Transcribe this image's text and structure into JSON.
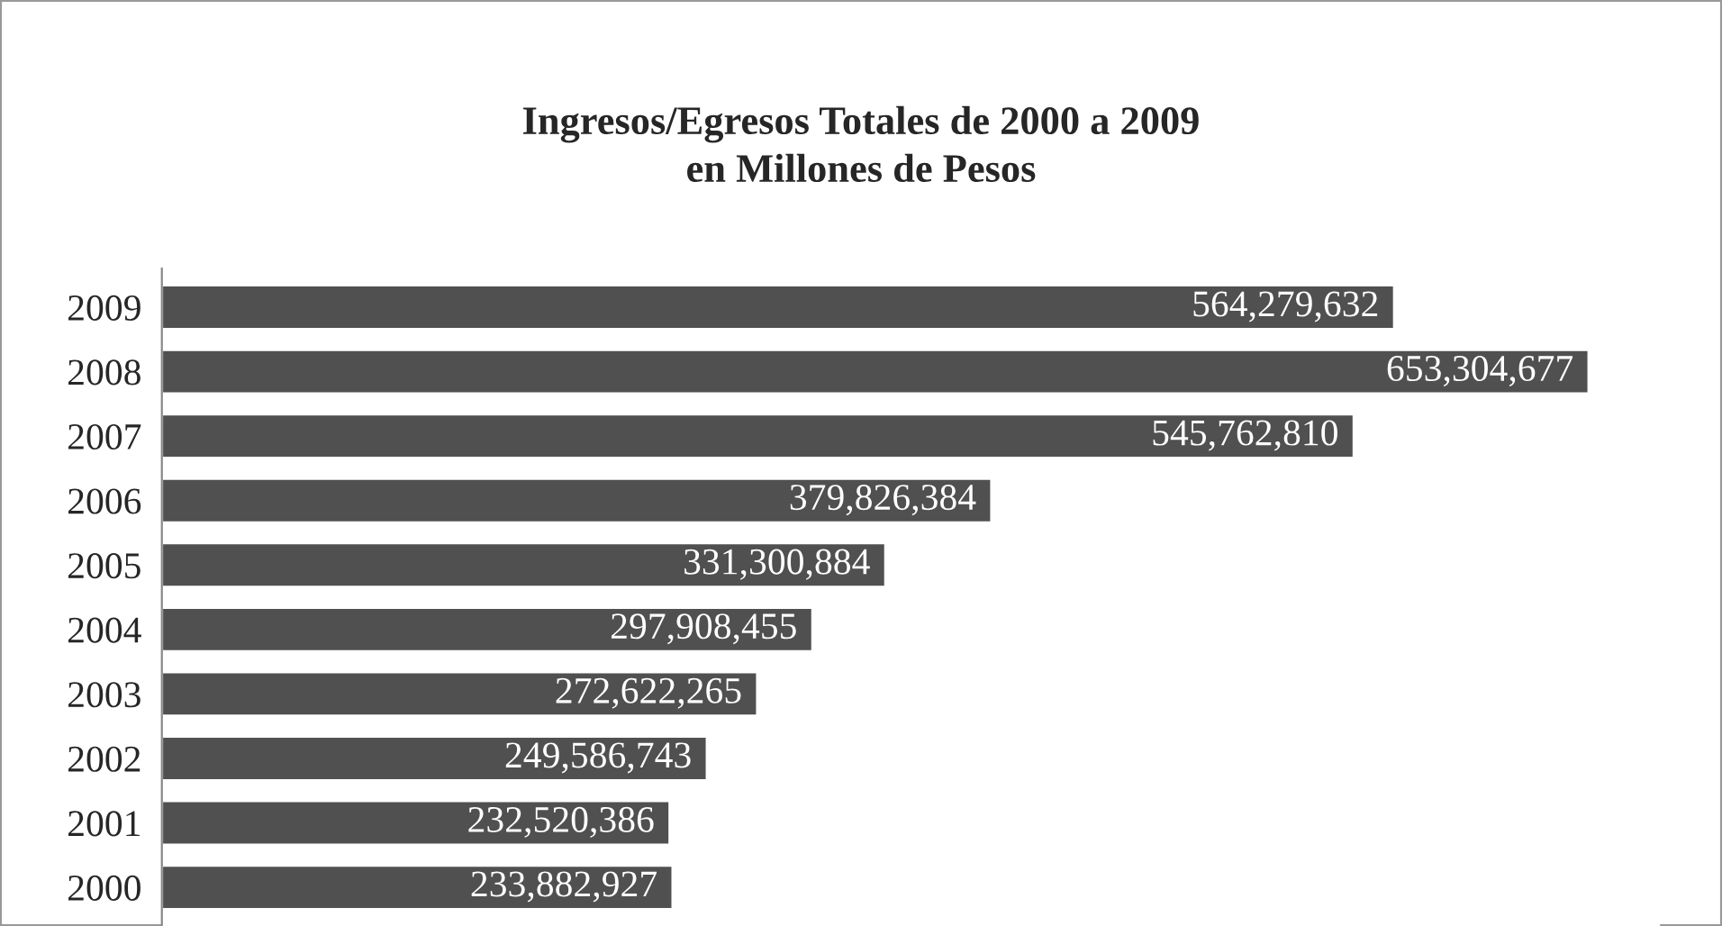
{
  "chart_data": {
    "type": "bar",
    "orientation": "horizontal",
    "title": "Ingresos/Egresos Totales de 2000 a 2009\nen Millones de Pesos",
    "categories": [
      "2009",
      "2008",
      "2007",
      "2006",
      "2005",
      "2004",
      "2003",
      "2002",
      "2001",
      "2000"
    ],
    "values": [
      564279632,
      653304677,
      545762810,
      379826384,
      331300884,
      297908455,
      272622265,
      249586743,
      232520386,
      233882927
    ],
    "value_labels": [
      "564,279,632",
      "653,304,677",
      "545,762,810",
      "379,826,384",
      "331,300,884",
      "297,908,455",
      "272,622,265",
      "249,586,743",
      "232,520,386",
      "233,882,927"
    ],
    "color": "#505050",
    "grid": false,
    "legend": false,
    "tick_labels": "y"
  }
}
